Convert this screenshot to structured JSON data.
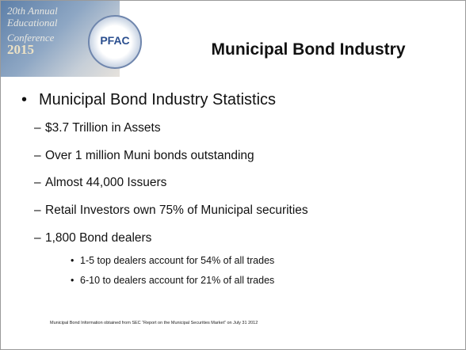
{
  "banner": {
    "lines": [
      "20th Annual",
      "Educational",
      "Conference"
    ],
    "year": "2015",
    "logo": "PFAC"
  },
  "title": "Municipal Bond Industry",
  "bullet": "Municipal Bond Industry Statistics",
  "sub_items": [
    "$3.7 Trillion in Assets",
    "Over 1 million Muni bonds outstanding",
    "Almost 44,000 Issuers",
    "Retail Investors own 75% of Municipal securities",
    "1,800 Bond dealers"
  ],
  "sub_sub_items": [
    "1-5 top dealers account for 54% of all trades",
    "6-10 to dealers account for 21% of all trades"
  ],
  "footnote": "Municipal Bond Information obtained from SEC “Report on the Municipal Securities Market” on July 31 2012"
}
